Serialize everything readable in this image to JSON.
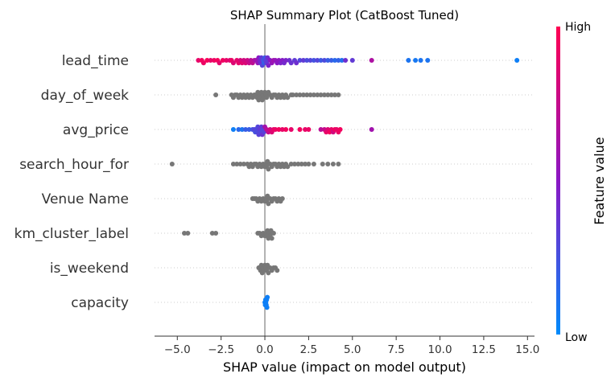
{
  "chart_data": {
    "type": "scatter",
    "title": "SHAP Summary Plot (CatBoost Tuned)",
    "xlabel": "SHAP value (impact on model output)",
    "ylabel": "",
    "xlim": [
      -6.3,
      15.4
    ],
    "x_ticks": [
      "−5.0",
      "−2.5",
      "0.0",
      "2.5",
      "5.0",
      "7.5",
      "10.0",
      "12.5",
      "15.0"
    ],
    "x_tick_values": [
      -5.0,
      -2.5,
      0.0,
      2.5,
      5.0,
      7.5,
      10.0,
      12.5,
      15.0
    ],
    "grid": false,
    "colorbar": {
      "label": "Feature value",
      "high": "High",
      "low": "Low"
    },
    "colors": {
      "high": "#ff0052",
      "mid": "#8a17c4",
      "low": "#008bfb",
      "gray": "#777777"
    },
    "features": [
      {
        "name": "lead_time",
        "colored": true,
        "points": [
          [
            -3.8,
            0.9
          ],
          [
            -3.6,
            0.95
          ],
          [
            -3.5,
            0.92
          ],
          [
            -3.3,
            0.97
          ],
          [
            -3.1,
            0.9
          ],
          [
            -2.9,
            0.93
          ],
          [
            -2.7,
            0.96
          ],
          [
            -2.6,
            0.88
          ],
          [
            -2.4,
            0.94
          ],
          [
            -2.2,
            0.9
          ],
          [
            -2.0,
            0.86
          ],
          [
            -1.9,
            0.92
          ],
          [
            -1.8,
            0.85
          ],
          [
            -1.6,
            0.88
          ],
          [
            -1.5,
            0.9
          ],
          [
            -1.4,
            0.82
          ],
          [
            -1.3,
            0.87
          ],
          [
            -1.2,
            0.8
          ],
          [
            -1.1,
            0.84
          ],
          [
            -1.0,
            0.78
          ],
          [
            -0.9,
            0.76
          ],
          [
            -0.8,
            0.7
          ],
          [
            -0.7,
            0.72
          ],
          [
            -0.6,
            0.66
          ],
          [
            -0.5,
            0.6
          ],
          [
            -0.4,
            0.55
          ],
          [
            -0.35,
            0.5
          ],
          [
            -0.3,
            0.45
          ],
          [
            -0.25,
            0.4
          ],
          [
            -0.2,
            0.35
          ],
          [
            -0.15,
            0.3
          ],
          [
            -0.1,
            0.25
          ],
          [
            -0.05,
            0.2
          ],
          [
            0.0,
            0.22
          ],
          [
            0.05,
            0.3
          ],
          [
            0.1,
            0.35
          ],
          [
            0.15,
            0.4
          ],
          [
            0.2,
            0.45
          ],
          [
            0.3,
            0.5
          ],
          [
            0.4,
            0.55
          ],
          [
            0.5,
            0.6
          ],
          [
            0.6,
            0.55
          ],
          [
            0.7,
            0.5
          ],
          [
            0.8,
            0.52
          ],
          [
            0.9,
            0.45
          ],
          [
            1.0,
            0.48
          ],
          [
            1.1,
            0.42
          ],
          [
            1.2,
            0.45
          ],
          [
            1.4,
            0.4
          ],
          [
            1.5,
            0.38
          ],
          [
            1.7,
            0.35
          ],
          [
            1.8,
            0.4
          ],
          [
            2.0,
            0.3
          ],
          [
            2.2,
            0.35
          ],
          [
            2.4,
            0.28
          ],
          [
            2.6,
            0.3
          ],
          [
            2.8,
            0.25
          ],
          [
            3.0,
            0.3
          ],
          [
            3.2,
            0.22
          ],
          [
            3.4,
            0.28
          ],
          [
            3.6,
            0.2
          ],
          [
            3.8,
            0.2
          ],
          [
            4.0,
            0.15
          ],
          [
            4.2,
            0.18
          ],
          [
            4.4,
            0.12
          ],
          [
            4.6,
            0.4
          ],
          [
            5.0,
            0.35
          ],
          [
            6.1,
            0.65
          ],
          [
            8.2,
            0.1
          ],
          [
            8.6,
            0.08
          ],
          [
            8.9,
            0.1
          ],
          [
            9.3,
            0.1
          ],
          [
            14.4,
            0.05
          ]
        ]
      },
      {
        "name": "day_of_week",
        "colored": false,
        "points": [
          [
            -2.8
          ],
          [
            -1.9
          ],
          [
            -1.8
          ],
          [
            -1.7
          ],
          [
            -1.6
          ],
          [
            -1.5
          ],
          [
            -1.4
          ],
          [
            -1.3
          ],
          [
            -1.2
          ],
          [
            -1.1
          ],
          [
            -1.0
          ],
          [
            -0.9
          ],
          [
            -0.8
          ],
          [
            -0.7
          ],
          [
            -0.6
          ],
          [
            -0.5
          ],
          [
            -0.45
          ],
          [
            -0.4
          ],
          [
            -0.35
          ],
          [
            -0.3
          ],
          [
            -0.25
          ],
          [
            -0.2
          ],
          [
            -0.15
          ],
          [
            -0.1
          ],
          [
            -0.05
          ],
          [
            0.0
          ],
          [
            0.05
          ],
          [
            0.1
          ],
          [
            0.2
          ],
          [
            0.3
          ],
          [
            0.4
          ],
          [
            0.5
          ],
          [
            0.6
          ],
          [
            0.7
          ],
          [
            0.8
          ],
          [
            0.9
          ],
          [
            1.0
          ],
          [
            1.1
          ],
          [
            1.2
          ],
          [
            1.3
          ],
          [
            1.5
          ],
          [
            1.6
          ],
          [
            1.8
          ],
          [
            2.0
          ],
          [
            2.2
          ],
          [
            2.4
          ],
          [
            2.6
          ],
          [
            2.8
          ],
          [
            3.0
          ],
          [
            3.2
          ],
          [
            3.4
          ],
          [
            3.6
          ],
          [
            3.8
          ],
          [
            4.0
          ],
          [
            4.2
          ]
        ]
      },
      {
        "name": "avg_price",
        "colored": true,
        "points": [
          [
            -1.8,
            0.05
          ],
          [
            -1.5,
            0.15
          ],
          [
            -1.3,
            0.1
          ],
          [
            -1.1,
            0.2
          ],
          [
            -0.9,
            0.2
          ],
          [
            -0.7,
            0.25
          ],
          [
            -0.6,
            0.3
          ],
          [
            -0.55,
            0.25
          ],
          [
            -0.5,
            0.3
          ],
          [
            -0.45,
            0.28
          ],
          [
            -0.4,
            0.3
          ],
          [
            -0.35,
            0.32
          ],
          [
            -0.3,
            0.35
          ],
          [
            -0.25,
            0.3
          ],
          [
            -0.2,
            0.35
          ],
          [
            -0.15,
            0.38
          ],
          [
            -0.1,
            0.3
          ],
          [
            -0.05,
            0.32
          ],
          [
            0.0,
            0.6
          ],
          [
            0.1,
            0.7
          ],
          [
            0.2,
            0.75
          ],
          [
            0.3,
            0.8
          ],
          [
            0.4,
            0.85
          ],
          [
            0.5,
            0.9
          ],
          [
            0.6,
            0.92
          ],
          [
            0.8,
            0.95
          ],
          [
            1.0,
            0.9
          ],
          [
            1.2,
            0.95
          ],
          [
            1.5,
            0.9
          ],
          [
            2.0,
            0.95
          ],
          [
            2.3,
            0.9
          ],
          [
            2.5,
            0.92
          ],
          [
            3.2,
            0.7
          ],
          [
            3.4,
            0.75
          ],
          [
            3.5,
            0.9
          ],
          [
            3.6,
            0.85
          ],
          [
            3.7,
            0.95
          ],
          [
            3.8,
            0.9
          ],
          [
            3.9,
            0.8
          ],
          [
            4.0,
            0.95
          ],
          [
            4.1,
            0.9
          ],
          [
            4.2,
            0.92
          ],
          [
            4.3,
            0.95
          ],
          [
            6.1,
            0.6
          ]
        ]
      },
      {
        "name": "search_hour_for",
        "colored": false,
        "points": [
          [
            -5.3
          ],
          [
            -1.8
          ],
          [
            -1.6
          ],
          [
            -1.4
          ],
          [
            -1.2
          ],
          [
            -1.0
          ],
          [
            -0.9
          ],
          [
            -0.8
          ],
          [
            -0.7
          ],
          [
            -0.6
          ],
          [
            -0.5
          ],
          [
            -0.4
          ],
          [
            -0.3
          ],
          [
            -0.2
          ],
          [
            -0.1
          ],
          [
            0.0
          ],
          [
            0.05
          ],
          [
            0.1
          ],
          [
            0.15
          ],
          [
            0.2
          ],
          [
            0.3
          ],
          [
            0.4
          ],
          [
            0.5
          ],
          [
            0.6
          ],
          [
            0.7
          ],
          [
            0.8
          ],
          [
            0.9
          ],
          [
            1.0
          ],
          [
            1.1
          ],
          [
            1.2
          ],
          [
            1.3
          ],
          [
            1.5
          ],
          [
            1.7
          ],
          [
            1.9
          ],
          [
            2.1
          ],
          [
            2.3
          ],
          [
            2.5
          ],
          [
            2.8
          ],
          [
            3.3
          ],
          [
            3.6
          ],
          [
            3.9
          ],
          [
            4.2
          ]
        ]
      },
      {
        "name": "Venue Name",
        "colored": false,
        "points": [
          [
            -0.7
          ],
          [
            -0.6
          ],
          [
            -0.5
          ],
          [
            -0.4
          ],
          [
            -0.3
          ],
          [
            -0.2
          ],
          [
            -0.1
          ],
          [
            0.0
          ],
          [
            0.05
          ],
          [
            0.1
          ],
          [
            0.15
          ],
          [
            0.2
          ],
          [
            0.3
          ],
          [
            0.4
          ],
          [
            0.5
          ],
          [
            0.6
          ],
          [
            0.7
          ],
          [
            0.8
          ],
          [
            0.9
          ],
          [
            1.0
          ]
        ]
      },
      {
        "name": "km_cluster_label",
        "colored": false,
        "points": [
          [
            -4.6
          ],
          [
            -4.4
          ],
          [
            -3.0
          ],
          [
            -2.8
          ],
          [
            -0.4
          ],
          [
            -0.3
          ],
          [
            -0.2
          ],
          [
            -0.1
          ],
          [
            0.0
          ],
          [
            0.05
          ],
          [
            0.1
          ],
          [
            0.15
          ],
          [
            0.2
          ],
          [
            0.25
          ],
          [
            0.3
          ],
          [
            0.35
          ],
          [
            0.4
          ],
          [
            0.5
          ]
        ]
      },
      {
        "name": "is_weekend",
        "colored": false,
        "points": [
          [
            -0.35
          ],
          [
            -0.3
          ],
          [
            -0.25
          ],
          [
            -0.2
          ],
          [
            -0.15
          ],
          [
            -0.1
          ],
          [
            -0.05
          ],
          [
            0.0
          ],
          [
            0.05
          ],
          [
            0.1
          ],
          [
            0.15
          ],
          [
            0.2
          ],
          [
            0.3
          ],
          [
            0.4
          ],
          [
            0.5
          ],
          [
            0.6
          ],
          [
            0.7
          ]
        ]
      },
      {
        "name": "capacity",
        "colored": true,
        "points": [
          [
            0.0,
            0.05
          ],
          [
            0.02,
            0.05
          ],
          [
            0.04,
            0.05
          ],
          [
            0.06,
            0.05
          ],
          [
            0.08,
            0.05
          ],
          [
            0.1,
            0.05
          ],
          [
            0.12,
            0.05
          ],
          [
            0.14,
            0.05
          ]
        ]
      }
    ]
  }
}
